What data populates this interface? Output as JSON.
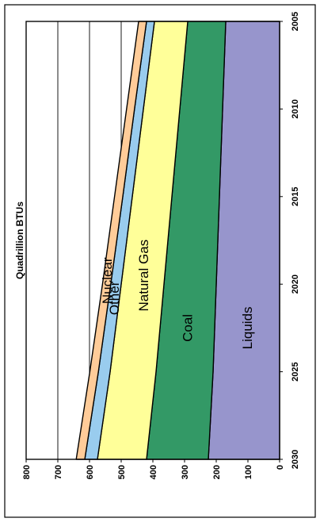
{
  "chart_data": {
    "type": "area",
    "stacked": true,
    "orientation": "rotated-90-ccw",
    "x": [
      2005,
      2010,
      2015,
      2020,
      2025,
      2030
    ],
    "x_ticks": [
      "2005",
      "2010",
      "2015",
      "2020",
      "2025",
      "2030"
    ],
    "y_ticks": [
      "0",
      "100",
      "200",
      "300",
      "400",
      "500",
      "600",
      "700",
      "800"
    ],
    "ylim": [
      0,
      800
    ],
    "xlim": [
      2005,
      2030
    ],
    "ylabel": "Quadrillion BTUs",
    "xlabel": "",
    "title": "",
    "grid": "horizontal-value-lines",
    "series": [
      {
        "name": "Liquids",
        "color": "#9795cc",
        "values": [
          170,
          180,
          190,
          200,
          210,
          225
        ]
      },
      {
        "name": "Coal",
        "color": "#339966",
        "values": [
          120,
          135,
          150,
          165,
          180,
          195
        ]
      },
      {
        "name": "Natural Gas",
        "color": "#ffff99",
        "values": [
          105,
          115,
          125,
          135,
          145,
          155
        ]
      },
      {
        "name": "Other",
        "color": "#99ccee",
        "values": [
          25,
          28,
          30,
          33,
          37,
          40
        ]
      },
      {
        "name": "Nuclear",
        "color": "#ffcc99",
        "values": [
          25,
          25,
          26,
          26,
          27,
          27
        ]
      }
    ]
  }
}
